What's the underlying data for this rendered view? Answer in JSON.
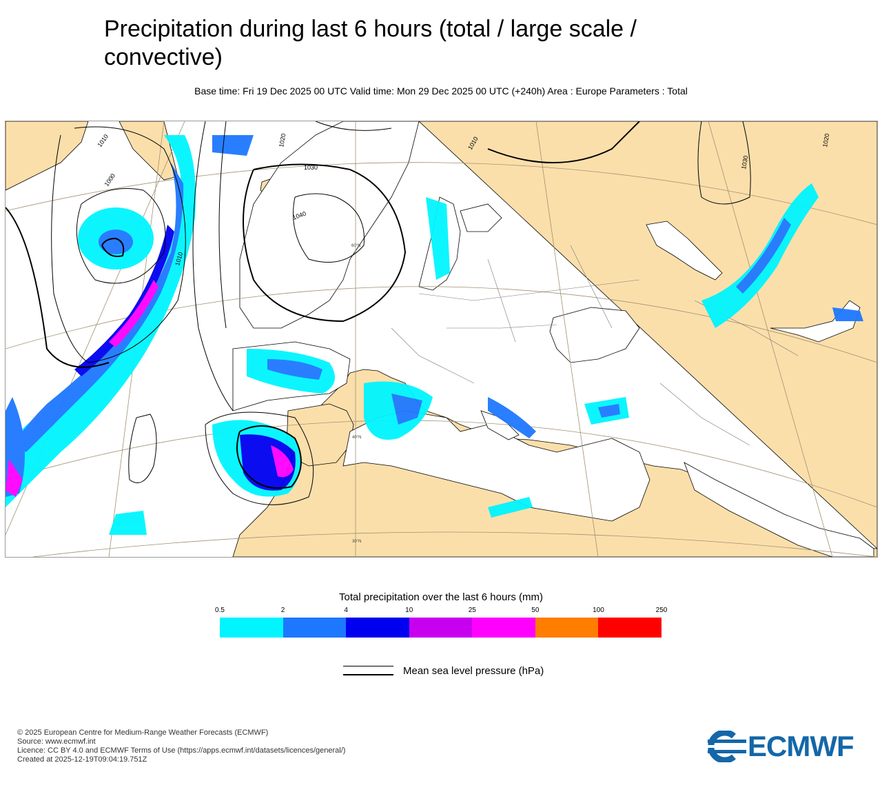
{
  "title": "Precipitation during last 6 hours (total / large scale / convective)",
  "subtitle": "Base time: Fri 19 Dec 2025 00 UTC Valid time: Mon 29 Dec 2025 00 UTC (+240h) Area : Europe Parameters : Total",
  "map": {
    "isobar_labels": [
      "1010",
      "1000",
      "1010",
      "1020",
      "1030",
      "1040",
      "1010",
      "1030",
      "1020"
    ],
    "latitude_labels": [
      "60°N",
      "40°N",
      "30°N"
    ],
    "colors": {
      "land": "#fbdfab",
      "sea": "#ffffff",
      "coast": "#000000",
      "border": "#777777",
      "graticule": "#a09070"
    }
  },
  "legend": {
    "title": "Total precipitation over the last 6 hours (mm)",
    "ticks": [
      "0.5",
      "2",
      "4",
      "10",
      "25",
      "50",
      "100",
      "250"
    ],
    "colors": [
      "#00f5ff",
      "#1e78ff",
      "#0000f0",
      "#c800f0",
      "#ff00ff",
      "#ff7d00",
      "#ff0000"
    ]
  },
  "pressure_legend": {
    "label": "Mean sea level pressure (hPa)"
  },
  "footer": {
    "lines": [
      "© 2025 European Centre for Medium-Range Weather Forecasts (ECMWF)",
      "Source: www.ecmwf.int",
      "Licence: CC BY 4.0 and ECMWF Terms of Use (https://apps.ecmwf.int/datasets/licences/general/)",
      "Created at 2025-12-19T09:04:19.751Z"
    ]
  },
  "logo": {
    "text": "ECMWF",
    "color": "#1467a8"
  }
}
